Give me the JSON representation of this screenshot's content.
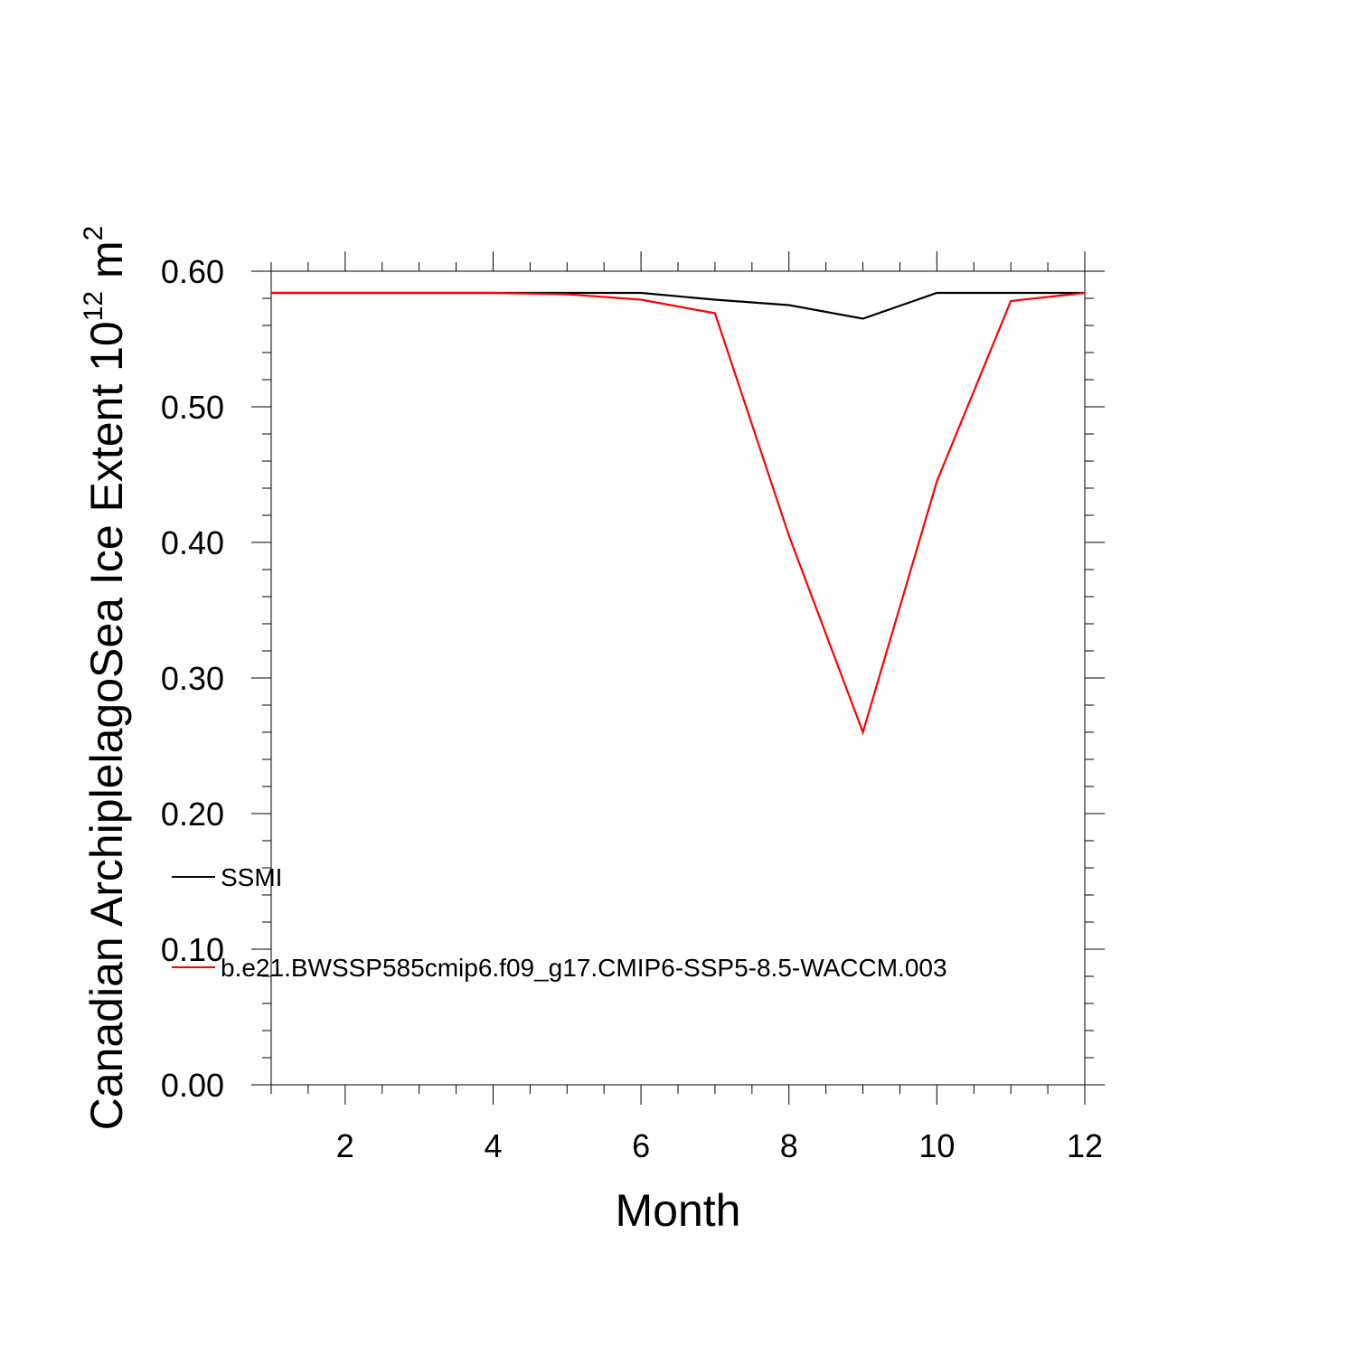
{
  "chart_data": {
    "type": "line",
    "title": "",
    "xlabel": "Month",
    "ylabel": {
      "main": "Canadian ArchiplelagoSea Ice Extent 10",
      "exp1": "12",
      "unit": " m",
      "exp2": "2"
    },
    "xlim": [
      1,
      12
    ],
    "ylim": [
      0,
      0.6
    ],
    "x_major_ticks": [
      2,
      4,
      6,
      8,
      10,
      12
    ],
    "x_tick_labels": [
      "2",
      "4",
      "6",
      "8",
      "10",
      "12"
    ],
    "y_major_ticks": [
      0,
      0.1,
      0.2,
      0.3,
      0.4,
      0.5,
      0.6
    ],
    "y_tick_labels": [
      "0.00",
      "0.10",
      "0.20",
      "0.30",
      "0.40",
      "0.50",
      "0.60"
    ],
    "grid": false,
    "legend_position": "left, lower-middle",
    "x": [
      1,
      2,
      3,
      4,
      5,
      6,
      7,
      8,
      9,
      10,
      11,
      12
    ],
    "series": [
      {
        "name": "SSMI",
        "color": "#000000",
        "values": [
          0.584,
          0.584,
          0.584,
          0.584,
          0.584,
          0.584,
          0.579,
          0.575,
          0.565,
          0.584,
          0.584,
          0.584
        ]
      },
      {
        "name": "b.e21.BWSSP585cmip6.f09_g17.CMIP6-SSP5-8.5-WACCM.003",
        "color": "#ff0000",
        "values": [
          0.584,
          0.584,
          0.584,
          0.584,
          0.583,
          0.579,
          0.569,
          0.405,
          0.26,
          0.445,
          0.578,
          0.584
        ]
      }
    ]
  }
}
